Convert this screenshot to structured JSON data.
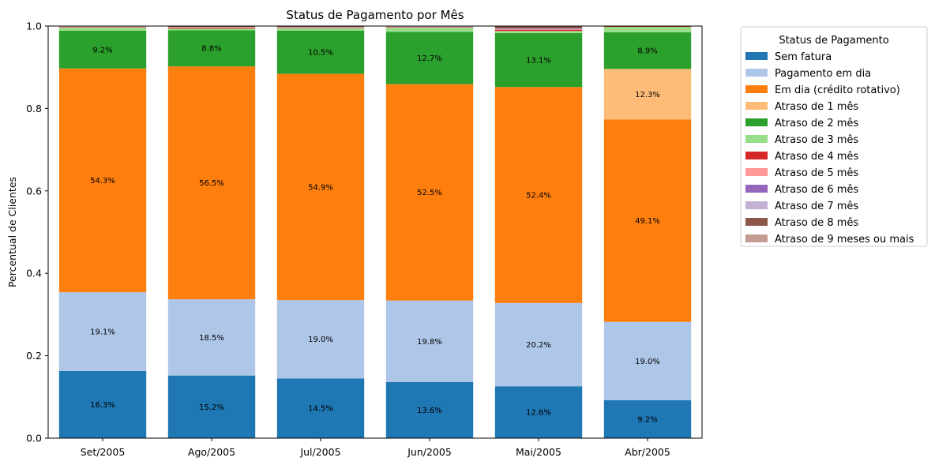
{
  "chart_data": {
    "type": "bar",
    "stacked": true,
    "title": "Status de Pagamento por Mês",
    "xlabel": "",
    "ylabel": "Percentual de Clientes",
    "ylim": [
      0,
      1
    ],
    "yticks": [
      "0.0",
      "0.2",
      "0.4",
      "0.6",
      "0.8",
      "1.0"
    ],
    "yticks_values": [
      0,
      0.2,
      0.4,
      0.6,
      0.8,
      1.0
    ],
    "grid": false,
    "legend_position": "outside-right",
    "legend_title": "Status de Pagamento",
    "categories": [
      "Set/2005",
      "Ago/2005",
      "Jul/2005",
      "Jun/2005",
      "Mai/2005",
      "Abr/2005"
    ],
    "series": [
      {
        "name": "Sem fatura",
        "color": "#1f77b4",
        "values": [
          0.163,
          0.152,
          0.145,
          0.136,
          0.126,
          0.092
        ],
        "labels": [
          "16.3%",
          "15.2%",
          "14.5%",
          "13.6%",
          "12.6%",
          "9.2%"
        ]
      },
      {
        "name": "Pagamento em dia",
        "color": "#aec7e8",
        "values": [
          0.191,
          0.185,
          0.19,
          0.198,
          0.202,
          0.19
        ],
        "labels": [
          "19.1%",
          "18.5%",
          "19.0%",
          "19.8%",
          "20.2%",
          "19.0%"
        ]
      },
      {
        "name": "Em dia (crédito rotativo)",
        "color": "#ff7f0e",
        "values": [
          0.543,
          0.565,
          0.549,
          0.525,
          0.524,
          0.491
        ],
        "labels": [
          "54.3%",
          "56.5%",
          "54.9%",
          "52.5%",
          "52.4%",
          "49.1%"
        ]
      },
      {
        "name": "Atraso de 1 mês",
        "color": "#ffbb78",
        "values": [
          0.0,
          0.0,
          0.0,
          0.0,
          0.0,
          0.123
        ],
        "labels": [
          "",
          "",
          "",
          "",
          "",
          "12.3%"
        ]
      },
      {
        "name": "Atraso de 2 mês",
        "color": "#2ca02c",
        "values": [
          0.092,
          0.088,
          0.105,
          0.127,
          0.131,
          0.089
        ],
        "labels": [
          "9.2%",
          "8.8%",
          "10.5%",
          "12.7%",
          "13.1%",
          "8.9%"
        ]
      },
      {
        "name": "Atraso de 3 mês",
        "color": "#98df8a",
        "values": [
          0.007,
          0.004,
          0.006,
          0.01,
          0.005,
          0.013
        ],
        "labels": [
          "",
          "",
          "",
          "",
          "",
          ""
        ]
      },
      {
        "name": "Atraso de 4 mês",
        "color": "#d62728",
        "values": [
          0.001,
          0.002,
          0.001,
          0.001,
          0.003,
          0.001
        ],
        "labels": [
          "",
          "",
          "",
          "",
          "",
          ""
        ]
      },
      {
        "name": "Atraso de 5 mês",
        "color": "#ff9896",
        "values": [
          0.001,
          0.001,
          0.001,
          0.001,
          0.001,
          0.001
        ],
        "labels": [
          "",
          "",
          "",
          "",
          "",
          ""
        ]
      },
      {
        "name": "Atraso de 6 mês",
        "color": "#9467bd",
        "values": [
          0.0,
          0.0,
          0.0,
          0.0,
          0.001,
          0.0
        ],
        "labels": [
          "",
          "",
          "",
          "",
          "",
          ""
        ]
      },
      {
        "name": "Atraso de 7 mês",
        "color": "#c5b0d5",
        "values": [
          0.001,
          0.001,
          0.001,
          0.001,
          0.001,
          0.0
        ],
        "labels": [
          "",
          "",
          "",
          "",
          "",
          ""
        ]
      },
      {
        "name": "Atraso de 8 mês",
        "color": "#8c564b",
        "values": [
          0.001,
          0.002,
          0.002,
          0.001,
          0.006,
          0.0
        ],
        "labels": [
          "",
          "",
          "",
          "",
          "",
          ""
        ]
      },
      {
        "name": "Atraso de 9 meses ou mais",
        "color": "#c49c94",
        "values": [
          0.0,
          0.0,
          0.0,
          0.0,
          0.0,
          0.0
        ],
        "labels": [
          "",
          "",
          "",
          "",
          "",
          ""
        ]
      }
    ]
  }
}
